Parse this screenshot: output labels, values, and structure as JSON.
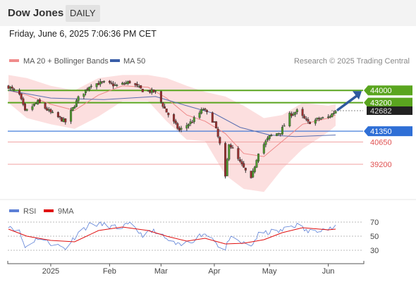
{
  "header": {
    "title": "Dow Jones",
    "timeframe": "DAILY",
    "datetime": "Friday, June 6, 2025 7:06:36 PM CET"
  },
  "chart_data": [
    {
      "type": "candlestick",
      "legend": [
        {
          "label": "MA 20 + Bollinger Bands",
          "color": "#f08c8c"
        },
        {
          "label": "MA 50",
          "color": "#3a5ea8"
        }
      ],
      "credit": "Research © 2025 Trading Central",
      "x_labels": [
        {
          "label": "2025",
          "x": "2025-01-02"
        },
        {
          "label": "Feb",
          "x": "2025-02-03"
        },
        {
          "label": "Mar",
          "x": "2025-03-03"
        },
        {
          "label": "Apr",
          "x": "2025-04-01"
        },
        {
          "label": "May",
          "x": "2025-05-01"
        },
        {
          "label": "Jun",
          "x": "2025-06-02"
        }
      ],
      "y_range": [
        36500,
        45200
      ],
      "levels": [
        {
          "label": "44000",
          "value": 44000,
          "kind": "resistance",
          "color": "#5aa51f"
        },
        {
          "label": "43200",
          "value": 43200,
          "kind": "resistance",
          "color": "#5aa51f"
        },
        {
          "label": "42682",
          "value": 42682,
          "kind": "last",
          "color": "#333333"
        },
        {
          "label": "41350",
          "value": 41350,
          "kind": "pivot",
          "color": "#2f6fd6"
        },
        {
          "label": "40650",
          "value": 40650,
          "kind": "support",
          "color": "#e05050"
        },
        {
          "label": "39200",
          "value": 39200,
          "kind": "support",
          "color": "#e05050"
        }
      ],
      "target_arrow": {
        "from": 42700,
        "to": 44000,
        "color": "#2f5a9e"
      },
      "series": {
        "close_path": [
          [
            "2024-12-10",
            44250
          ],
          [
            "2024-12-16",
            43700
          ],
          [
            "2024-12-19",
            42600
          ],
          [
            "2024-12-26",
            43250
          ],
          [
            "2025-01-02",
            42550
          ],
          [
            "2025-01-10",
            41950
          ],
          [
            "2025-01-17",
            43500
          ],
          [
            "2025-01-24",
            44400
          ],
          [
            "2025-01-31",
            44500
          ],
          [
            "2025-02-07",
            44300
          ],
          [
            "2025-02-14",
            44550
          ],
          [
            "2025-02-21",
            44000
          ],
          [
            "2025-02-28",
            43900
          ],
          [
            "2025-03-06",
            42600
          ],
          [
            "2025-03-13",
            41400
          ],
          [
            "2025-03-20",
            42000
          ],
          [
            "2025-03-26",
            42800
          ],
          [
            "2025-04-01",
            41900
          ],
          [
            "2025-04-04",
            40500
          ],
          [
            "2025-04-07",
            38300
          ],
          [
            "2025-04-09",
            40600
          ],
          [
            "2025-04-14",
            39500
          ],
          [
            "2025-04-21",
            38200
          ],
          [
            "2025-04-25",
            40000
          ],
          [
            "2025-05-01",
            41000
          ],
          [
            "2025-05-07",
            41300
          ],
          [
            "2025-05-12",
            42400
          ],
          [
            "2025-05-16",
            42650
          ],
          [
            "2025-05-22",
            41900
          ],
          [
            "2025-05-28",
            42150
          ],
          [
            "2025-06-02",
            42250
          ],
          [
            "2025-06-06",
            42682
          ]
        ],
        "ma20": [
          [
            "2024-12-10",
            44000
          ],
          [
            "2024-12-20",
            43700
          ],
          [
            "2025-01-02",
            43100
          ],
          [
            "2025-01-15",
            42700
          ],
          [
            "2025-01-28",
            43700
          ],
          [
            "2025-02-10",
            44300
          ],
          [
            "2025-02-24",
            44200
          ],
          [
            "2025-03-06",
            43500
          ],
          [
            "2025-03-17",
            42400
          ],
          [
            "2025-03-27",
            42000
          ],
          [
            "2025-04-07",
            41200
          ],
          [
            "2025-04-17",
            39900
          ],
          [
            "2025-04-28",
            39700
          ],
          [
            "2025-05-08",
            40700
          ],
          [
            "2025-05-19",
            41800
          ],
          [
            "2025-06-02",
            42200
          ],
          [
            "2025-06-06",
            42400
          ]
        ],
        "bb_upper": [
          [
            "2024-12-10",
            45000
          ],
          [
            "2024-12-20",
            44800
          ],
          [
            "2025-01-02",
            44300
          ],
          [
            "2025-01-15",
            44000
          ],
          [
            "2025-01-28",
            44800
          ],
          [
            "2025-02-10",
            45000
          ],
          [
            "2025-02-24",
            45000
          ],
          [
            "2025-03-06",
            44800
          ],
          [
            "2025-03-17",
            44300
          ],
          [
            "2025-03-27",
            43900
          ],
          [
            "2025-04-07",
            43600
          ],
          [
            "2025-04-17",
            43000
          ],
          [
            "2025-04-28",
            42200
          ],
          [
            "2025-05-08",
            42400
          ],
          [
            "2025-05-19",
            43200
          ],
          [
            "2025-06-02",
            43000
          ],
          [
            "2025-06-06",
            43100
          ]
        ],
        "bb_lower": [
          [
            "2024-12-10",
            43200
          ],
          [
            "2024-12-20",
            42200
          ],
          [
            "2025-01-02",
            41800
          ],
          [
            "2025-01-15",
            41500
          ],
          [
            "2025-01-28",
            42300
          ],
          [
            "2025-02-10",
            43300
          ],
          [
            "2025-02-24",
            43300
          ],
          [
            "2025-03-06",
            42000
          ],
          [
            "2025-03-17",
            40800
          ],
          [
            "2025-03-27",
            40700
          ],
          [
            "2025-04-07",
            38500
          ],
          [
            "2025-04-17",
            37600
          ],
          [
            "2025-04-28",
            37400
          ],
          [
            "2025-05-08",
            38900
          ],
          [
            "2025-05-19",
            40200
          ],
          [
            "2025-06-02",
            41300
          ],
          [
            "2025-06-06",
            41700
          ]
        ],
        "ma50": [
          [
            "2024-12-10",
            44000
          ],
          [
            "2025-01-02",
            43500
          ],
          [
            "2025-01-31",
            43400
          ],
          [
            "2025-02-28",
            43600
          ],
          [
            "2025-03-17",
            43000
          ],
          [
            "2025-04-01",
            42500
          ],
          [
            "2025-04-15",
            41600
          ],
          [
            "2025-05-01",
            41100
          ],
          [
            "2025-05-15",
            41000
          ],
          [
            "2025-06-06",
            41100
          ]
        ]
      }
    },
    {
      "type": "line",
      "legend": [
        {
          "label": "RSI",
          "color": "#5b7fd6"
        },
        {
          "label": "9MA",
          "color": "#e01010"
        }
      ],
      "y_ticks": [
        "70",
        "50",
        "30"
      ],
      "y_range": [
        20,
        80
      ],
      "series": {
        "rsi": [
          [
            "2024-12-10",
            66
          ],
          [
            "2024-12-16",
            56
          ],
          [
            "2024-12-19",
            34
          ],
          [
            "2024-12-26",
            48
          ],
          [
            "2025-01-02",
            40
          ],
          [
            "2025-01-10",
            33
          ],
          [
            "2025-01-17",
            55
          ],
          [
            "2025-01-24",
            68
          ],
          [
            "2025-01-31",
            66
          ],
          [
            "2025-02-07",
            62
          ],
          [
            "2025-02-14",
            66
          ],
          [
            "2025-02-21",
            52
          ],
          [
            "2025-02-28",
            58
          ],
          [
            "2025-03-06",
            45
          ],
          [
            "2025-03-13",
            36
          ],
          [
            "2025-03-20",
            44
          ],
          [
            "2025-03-26",
            54
          ],
          [
            "2025-04-01",
            46
          ],
          [
            "2025-04-04",
            33
          ],
          [
            "2025-04-07",
            30
          ],
          [
            "2025-04-09",
            47
          ],
          [
            "2025-04-14",
            42
          ],
          [
            "2025-04-21",
            36
          ],
          [
            "2025-04-25",
            52
          ],
          [
            "2025-05-01",
            56
          ],
          [
            "2025-05-07",
            57
          ],
          [
            "2025-05-12",
            64
          ],
          [
            "2025-05-16",
            66
          ],
          [
            "2025-05-22",
            56
          ],
          [
            "2025-05-28",
            60
          ],
          [
            "2025-06-02",
            60
          ],
          [
            "2025-06-06",
            62
          ]
        ],
        "ma9": [
          [
            "2024-12-10",
            60
          ],
          [
            "2024-12-20",
            50
          ],
          [
            "2025-01-02",
            44
          ],
          [
            "2025-01-15",
            42
          ],
          [
            "2025-01-28",
            58
          ],
          [
            "2025-02-10",
            63
          ],
          [
            "2025-02-24",
            58
          ],
          [
            "2025-03-06",
            50
          ],
          [
            "2025-03-17",
            43
          ],
          [
            "2025-03-27",
            47
          ],
          [
            "2025-04-07",
            39
          ],
          [
            "2025-04-17",
            40
          ],
          [
            "2025-04-28",
            45
          ],
          [
            "2025-05-08",
            55
          ],
          [
            "2025-05-19",
            62
          ],
          [
            "2025-06-02",
            59
          ],
          [
            "2025-06-06",
            60
          ]
        ]
      }
    }
  ]
}
